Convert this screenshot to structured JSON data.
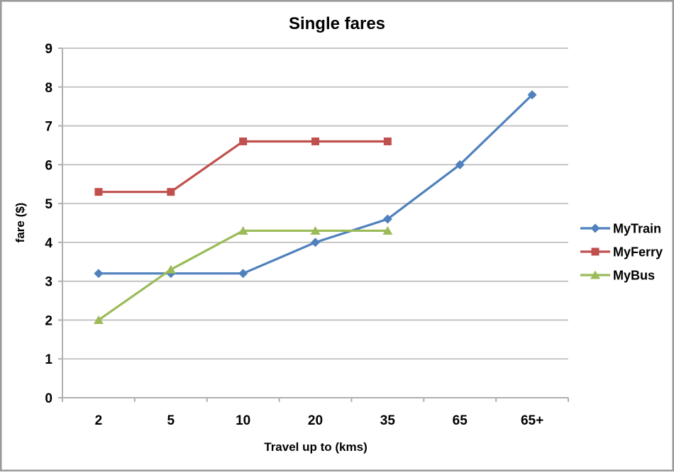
{
  "chart_data": {
    "type": "line",
    "title": "Single fares",
    "xlabel": "Travel up to (kms)",
    "ylabel": "fare ($)",
    "categories": [
      "2",
      "5",
      "10",
      "20",
      "35",
      "65",
      "65+"
    ],
    "series": [
      {
        "name": "MyTrain",
        "marker": "diamond",
        "color": "#4F81BD",
        "values": [
          3.2,
          3.2,
          3.2,
          4.0,
          4.6,
          6.0,
          7.8
        ]
      },
      {
        "name": "MyFerry",
        "marker": "square",
        "color": "#C0504D",
        "values": [
          5.3,
          5.3,
          6.6,
          6.6,
          6.6,
          null,
          null
        ]
      },
      {
        "name": "MyBus",
        "marker": "triangle",
        "color": "#9BBB59",
        "values": [
          2.0,
          3.3,
          4.3,
          4.3,
          4.3,
          null,
          null
        ]
      }
    ],
    "ylim": [
      0,
      9
    ],
    "yticks": [
      0,
      1,
      2,
      3,
      4,
      5,
      6,
      7,
      8,
      9
    ],
    "grid": true,
    "legend_position": "right"
  },
  "colors": {
    "background": "#FFFFFF",
    "border": "#9A9A9A",
    "gridline": "#BFBFBF",
    "axis": "#B0B0B0",
    "text": "#000000"
  }
}
